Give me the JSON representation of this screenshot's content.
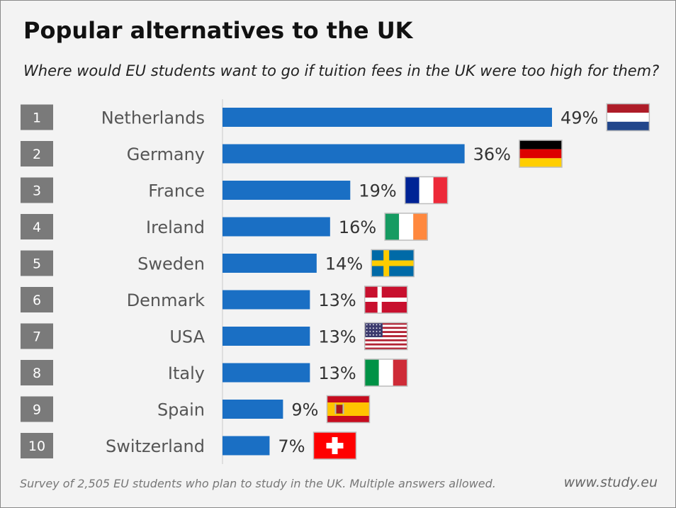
{
  "title": "Popular alternatives to the UK",
  "subtitle": "Where would EU students want to go if tuition fees in the UK were too high for them?",
  "footer": {
    "note": "Survey of 2,505 EU students who plan to study in the UK. Multiple answers allowed.",
    "source": "www.study.eu"
  },
  "colors": {
    "bar": "#1a6fc4",
    "rank_box": "#7a7a7a",
    "background": "#f3f3f3"
  },
  "chart_data": {
    "type": "bar",
    "orientation": "horizontal",
    "categories": [
      "Netherlands",
      "Germany",
      "France",
      "Ireland",
      "Sweden",
      "Denmark",
      "USA",
      "Italy",
      "Spain",
      "Switzerland"
    ],
    "ranks": [
      "1",
      "2",
      "3",
      "4",
      "5",
      "6",
      "7",
      "8",
      "9",
      "10"
    ],
    "values": [
      49,
      36,
      19,
      16,
      14,
      13,
      13,
      13,
      9,
      7
    ],
    "value_labels": [
      "49%",
      "36%",
      "19%",
      "16%",
      "14%",
      "13%",
      "13%",
      "13%",
      "9%",
      "7%"
    ],
    "flags": [
      "netherlands-flag",
      "germany-flag",
      "france-flag",
      "ireland-flag",
      "sweden-flag",
      "denmark-flag",
      "usa-flag",
      "italy-flag",
      "spain-flag",
      "switzerland-flag"
    ],
    "unit": "%",
    "xlim": [
      0,
      49
    ],
    "grid": false,
    "legend": "none"
  }
}
